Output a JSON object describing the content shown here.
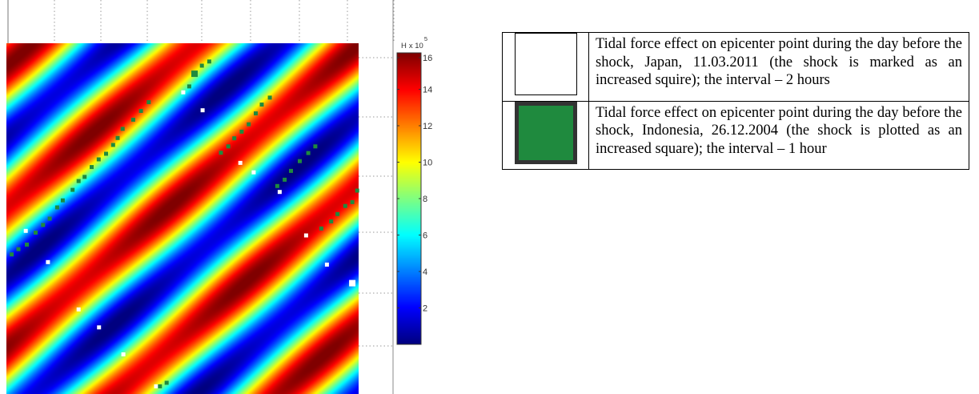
{
  "chart_data": {
    "type": "heatmap",
    "colorbar": {
      "label_letter": "H",
      "label_mult": "x 10",
      "label_exp": "5",
      "min": 0,
      "max": 16,
      "tick_values": [
        2,
        4,
        6,
        8,
        10,
        12,
        14,
        16
      ],
      "tick_labels": [
        "2",
        "4",
        "6",
        "8",
        "10",
        "12",
        "14",
        "16"
      ],
      "colormap": "jet"
    },
    "grid": "on",
    "series": [
      {
        "marker_color": "#ffffff",
        "points": [
          [
            0.055,
            0.535
          ],
          [
            0.118,
            0.624
          ],
          [
            0.205,
            0.759
          ],
          [
            0.263,
            0.81
          ],
          [
            0.332,
            0.887
          ],
          [
            0.425,
            0.978
          ],
          [
            0.502,
            0.14
          ],
          [
            0.557,
            0.191
          ],
          [
            0.664,
            0.341
          ],
          [
            0.702,
            0.368
          ],
          [
            0.776,
            0.424
          ],
          [
            0.851,
            0.548
          ],
          [
            0.91,
            0.631
          ],
          [
            0.982,
            0.684
          ]
        ],
        "shock_index": 13
      },
      {
        "marker_color": "#1f8a3e",
        "points": [
          [
            0.015,
            0.602
          ],
          [
            0.034,
            0.587
          ],
          [
            0.058,
            0.574
          ],
          [
            0.083,
            0.54
          ],
          [
            0.104,
            0.518
          ],
          [
            0.123,
            0.5
          ],
          [
            0.144,
            0.468
          ],
          [
            0.16,
            0.448
          ],
          [
            0.188,
            0.418
          ],
          [
            0.205,
            0.393
          ],
          [
            0.222,
            0.381
          ],
          [
            0.242,
            0.353
          ],
          [
            0.262,
            0.331
          ],
          [
            0.283,
            0.315
          ],
          [
            0.303,
            0.29
          ],
          [
            0.316,
            0.27
          ],
          [
            0.33,
            0.244
          ],
          [
            0.36,
            0.218
          ],
          [
            0.382,
            0.193
          ],
          [
            0.404,
            0.168
          ],
          [
            0.436,
            0.978
          ],
          [
            0.455,
            0.968
          ],
          [
            0.519,
            0.123
          ],
          [
            0.534,
            0.087
          ],
          [
            0.555,
            0.064
          ],
          [
            0.576,
            0.052
          ],
          [
            0.609,
            0.312
          ],
          [
            0.63,
            0.294
          ],
          [
            0.647,
            0.271
          ],
          [
            0.668,
            0.252
          ],
          [
            0.688,
            0.231
          ],
          [
            0.708,
            0.2
          ],
          [
            0.725,
            0.175
          ],
          [
            0.748,
            0.155
          ],
          [
            0.769,
            0.407
          ],
          [
            0.79,
            0.389
          ],
          [
            0.808,
            0.364
          ],
          [
            0.833,
            0.336
          ],
          [
            0.857,
            0.313
          ],
          [
            0.877,
            0.294
          ],
          [
            0.894,
            0.528
          ],
          [
            0.922,
            0.508
          ],
          [
            0.94,
            0.487
          ],
          [
            0.962,
            0.464
          ],
          [
            0.982,
            0.453
          ],
          [
            0.996,
            0.42
          ]
        ],
        "shock_index": 23
      }
    ]
  },
  "legend": {
    "rows": [
      {
        "symbol_color": "#ffffff",
        "text": "Tidal force effect on  epicenter point during the day before the shock, Japan, 11.03.2011 (the shock is marked as an increased squire); the interval – 2 hours"
      },
      {
        "symbol_color": "#1f8a3e",
        "text": "Tidal force effect on epicenter point during the day before the shock, Indonesia, 26.12.2004 (the shock is plotted as an increased square); the interval – 1 hour"
      }
    ]
  }
}
